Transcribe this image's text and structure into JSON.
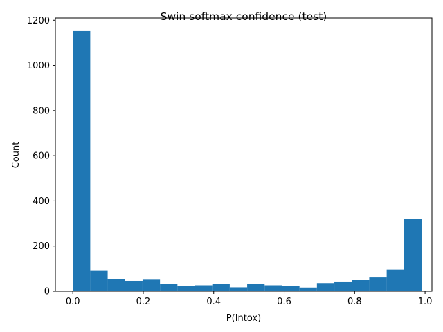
{
  "chart_data": {
    "type": "bar",
    "title": "Swin softmax confidence (test)",
    "xlabel": "P(Intox)",
    "ylabel": "Count",
    "xlim": [
      -0.0495,
      1.0195
    ],
    "ylim": [
      0,
      1210
    ],
    "bin_edges": [
      0.0,
      0.0495,
      0.099,
      0.1485,
      0.198,
      0.2475,
      0.297,
      0.3465,
      0.396,
      0.4455,
      0.495,
      0.5445,
      0.594,
      0.6435,
      0.693,
      0.7425,
      0.792,
      0.8415,
      0.891,
      0.9405,
      0.99
    ],
    "counts": [
      1152,
      90,
      55,
      46,
      51,
      33,
      22,
      26,
      32,
      17,
      32,
      26,
      22,
      16,
      36,
      43,
      49,
      61,
      96,
      320
    ],
    "xticks": [
      0.0,
      0.2,
      0.4,
      0.6,
      0.8,
      1.0
    ],
    "xtick_labels": [
      "0.0",
      "0.2",
      "0.4",
      "0.6",
      "0.8",
      "1.0"
    ],
    "yticks": [
      0,
      200,
      400,
      600,
      800,
      1000,
      1200
    ],
    "ytick_labels": [
      "0",
      "200",
      "400",
      "600",
      "800",
      "1000",
      "1200"
    ],
    "bar_color": "#1f77b4",
    "grid": false,
    "legend": "none"
  }
}
